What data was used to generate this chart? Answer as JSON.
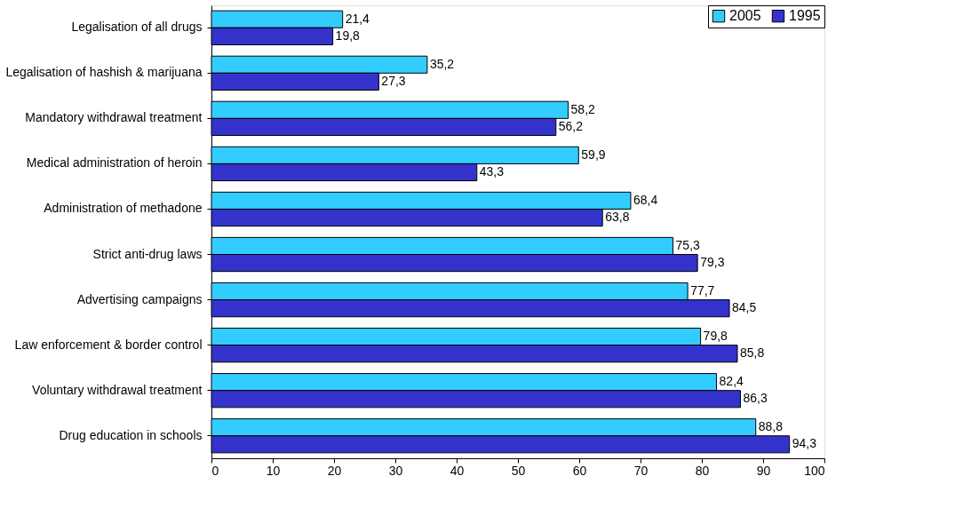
{
  "chart_data": {
    "type": "bar",
    "orientation": "horizontal",
    "categories": [
      "Legalisation of all drugs",
      "Legalisation of hashish & marijuana",
      "Mandatory withdrawal treatment",
      "Medical administration of heroin",
      "Administration of methadone",
      "Strict anti-drug laws",
      "Advertising campaigns",
      "Law enforcement & border control",
      "Voluntary withdrawal treatment",
      "Drug education in schools"
    ],
    "series": [
      {
        "name": "2005",
        "color": "#33ccff",
        "values": [
          21.4,
          35.2,
          58.2,
          59.9,
          68.4,
          75.3,
          77.7,
          79.8,
          82.4,
          88.8
        ],
        "value_labels": [
          "21,4",
          "35,2",
          "58,2",
          "59,9",
          "68,4",
          "75,3",
          "77,7",
          "79,8",
          "82,4",
          "88,8"
        ]
      },
      {
        "name": "1995",
        "color": "#3333cc",
        "values": [
          19.8,
          27.3,
          56.2,
          43.3,
          63.8,
          79.3,
          84.5,
          85.8,
          86.3,
          94.3
        ],
        "value_labels": [
          "19,8",
          "27,3",
          "56,2",
          "43,3",
          "63,8",
          "79,3",
          "84,5",
          "85,8",
          "86,3",
          "94,3"
        ]
      }
    ],
    "xlim": [
      0,
      100
    ],
    "xticks": [
      0,
      10,
      20,
      30,
      40,
      50,
      60,
      70,
      80,
      90,
      100
    ],
    "grid": false,
    "legend": "top right"
  }
}
